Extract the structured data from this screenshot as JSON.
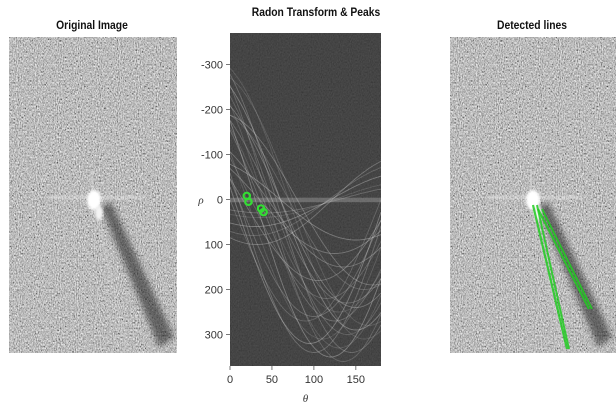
{
  "panels": {
    "left": {
      "title": "Original Image"
    },
    "middle": {
      "title": "Radon Transform & Peaks"
    },
    "right": {
      "title": "Detected lines"
    }
  },
  "chart_data": {
    "type": "heatmap",
    "title": "Radon Transform & Peaks",
    "xlabel": "θ",
    "ylabel": "ρ",
    "xlim": [
      0,
      180
    ],
    "ylim": [
      -370,
      370
    ],
    "y_inverted": true,
    "x_ticks": [
      0,
      50,
      100,
      150
    ],
    "y_ticks": [
      -300,
      -200,
      -100,
      0,
      100,
      200,
      300
    ],
    "colormap": "gray",
    "peak_color": "#33dd33",
    "peaks": [
      {
        "theta": 20,
        "rho": -8
      },
      {
        "theta": 22,
        "rho": 5
      },
      {
        "theta": 37,
        "rho": 20
      },
      {
        "theta": 40,
        "rho": 28
      }
    ]
  },
  "detected_lines": {
    "color": "#22cc22"
  }
}
